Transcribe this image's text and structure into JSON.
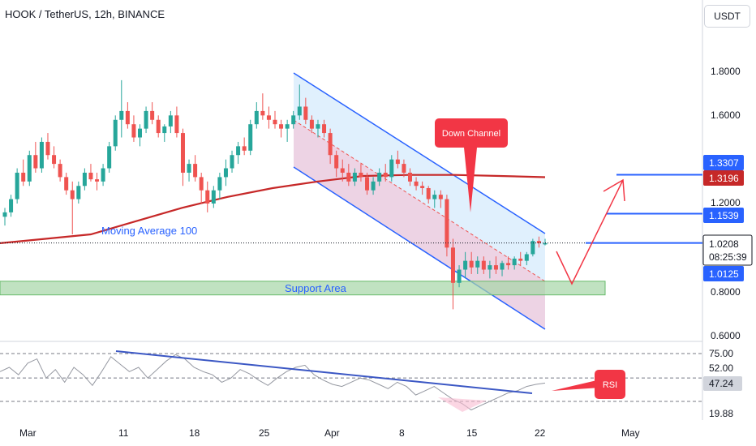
{
  "header": {
    "title": "HOOK / TetherUS, 12h, BINANCE",
    "currency_button": "USDT"
  },
  "colors": {
    "bull": "#26a69a",
    "bear": "#ef5350",
    "ma": "#c62828",
    "channel": "#2962ff",
    "support": "#a5d6a7",
    "rsi": "#9598a1",
    "trend": "#3b57c4",
    "callout": "#f23645"
  },
  "price_axis": {
    "ticks": [
      "1.8000",
      "1.6000",
      "1.2000",
      "0.8000",
      "0.6000"
    ],
    "ylim": [
      0.6,
      1.98
    ]
  },
  "price_labels": {
    "level_1": "1.3307",
    "ma_value": "1.3196",
    "level_2": "1.1539",
    "last_price": "1.0208",
    "countdown": "08:25:39",
    "level_3": "1.0125"
  },
  "rsi_axis": {
    "ticks": [
      "75.00",
      "52.00",
      "19.88"
    ],
    "value": "47.24"
  },
  "x_axis": {
    "labels": [
      "Mar",
      "11",
      "18",
      "25",
      "Apr",
      "8",
      "15",
      "22",
      "May"
    ]
  },
  "annotations": {
    "down_channel": "Down Channel",
    "moving_average": "Moving Average 100",
    "support_area": "Support Area",
    "rsi": "RSI"
  },
  "chart_data": {
    "type": "candlestick",
    "title": "HOOK / TetherUS, 12h, BINANCE",
    "ylim": [
      0.6,
      1.98
    ],
    "series": [
      {
        "name": "",
        "ohlc": [
          [
            1.14,
            1.18,
            1.1,
            1.16
          ],
          [
            1.16,
            1.24,
            1.14,
            1.22
          ],
          [
            1.22,
            1.36,
            1.2,
            1.34
          ],
          [
            1.34,
            1.4,
            1.28,
            1.3
          ],
          [
            1.3,
            1.44,
            1.28,
            1.42
          ],
          [
            1.42,
            1.48,
            1.34,
            1.36
          ],
          [
            1.36,
            1.5,
            1.34,
            1.48
          ],
          [
            1.48,
            1.52,
            1.4,
            1.42
          ],
          [
            1.42,
            1.46,
            1.36,
            1.38
          ],
          [
            1.38,
            1.4,
            1.3,
            1.32
          ],
          [
            1.32,
            1.34,
            1.24,
            1.26
          ],
          [
            1.26,
            1.3,
            1.06,
            1.22
          ],
          [
            1.22,
            1.3,
            1.2,
            1.28
          ],
          [
            1.28,
            1.36,
            1.26,
            1.34
          ],
          [
            1.34,
            1.38,
            1.3,
            1.31
          ],
          [
            1.31,
            1.34,
            1.26,
            1.3
          ],
          [
            1.3,
            1.38,
            1.28,
            1.36
          ],
          [
            1.36,
            1.48,
            1.34,
            1.46
          ],
          [
            1.46,
            1.6,
            1.44,
            1.58
          ],
          [
            1.58,
            1.76,
            1.5,
            1.62
          ],
          [
            1.62,
            1.66,
            1.54,
            1.56
          ],
          [
            1.56,
            1.6,
            1.48,
            1.5
          ],
          [
            1.5,
            1.56,
            1.46,
            1.54
          ],
          [
            1.54,
            1.64,
            1.52,
            1.62
          ],
          [
            1.62,
            1.66,
            1.56,
            1.58
          ],
          [
            1.58,
            1.6,
            1.5,
            1.52
          ],
          [
            1.52,
            1.56,
            1.48,
            1.55
          ],
          [
            1.55,
            1.62,
            1.52,
            1.6
          ],
          [
            1.6,
            1.64,
            1.5,
            1.52
          ],
          [
            1.52,
            1.54,
            1.28,
            1.34
          ],
          [
            1.34,
            1.4,
            1.3,
            1.38
          ],
          [
            1.38,
            1.42,
            1.3,
            1.32
          ],
          [
            1.32,
            1.34,
            1.2,
            1.26
          ],
          [
            1.26,
            1.3,
            1.16,
            1.2
          ],
          [
            1.2,
            1.28,
            1.18,
            1.26
          ],
          [
            1.26,
            1.34,
            1.22,
            1.32
          ],
          [
            1.32,
            1.4,
            1.28,
            1.36
          ],
          [
            1.36,
            1.44,
            1.34,
            1.42
          ],
          [
            1.42,
            1.48,
            1.38,
            1.46
          ],
          [
            1.46,
            1.5,
            1.42,
            1.44
          ],
          [
            1.44,
            1.58,
            1.42,
            1.56
          ],
          [
            1.56,
            1.66,
            1.54,
            1.62
          ],
          [
            1.62,
            1.7,
            1.58,
            1.6
          ],
          [
            1.6,
            1.64,
            1.54,
            1.58
          ],
          [
            1.58,
            1.62,
            1.54,
            1.56
          ],
          [
            1.56,
            1.58,
            1.5,
            1.54
          ],
          [
            1.54,
            1.58,
            1.48,
            1.56
          ],
          [
            1.56,
            1.62,
            1.54,
            1.6
          ],
          [
            1.6,
            1.74,
            1.58,
            1.64
          ],
          [
            1.64,
            1.68,
            1.56,
            1.58
          ],
          [
            1.58,
            1.6,
            1.52,
            1.54
          ],
          [
            1.54,
            1.58,
            1.5,
            1.56
          ],
          [
            1.56,
            1.58,
            1.5,
            1.52
          ],
          [
            1.52,
            1.54,
            1.38,
            1.42
          ],
          [
            1.42,
            1.44,
            1.32,
            1.36
          ],
          [
            1.36,
            1.4,
            1.3,
            1.34
          ],
          [
            1.34,
            1.38,
            1.28,
            1.3
          ],
          [
            1.3,
            1.36,
            1.28,
            1.34
          ],
          [
            1.34,
            1.38,
            1.3,
            1.32
          ],
          [
            1.32,
            1.34,
            1.24,
            1.26
          ],
          [
            1.26,
            1.32,
            1.24,
            1.3
          ],
          [
            1.3,
            1.36,
            1.28,
            1.34
          ],
          [
            1.34,
            1.38,
            1.3,
            1.32
          ],
          [
            1.32,
            1.42,
            1.3,
            1.4
          ],
          [
            1.4,
            1.44,
            1.36,
            1.38
          ],
          [
            1.38,
            1.4,
            1.32,
            1.34
          ],
          [
            1.34,
            1.36,
            1.28,
            1.3
          ],
          [
            1.3,
            1.32,
            1.26,
            1.28
          ],
          [
            1.28,
            1.3,
            1.24,
            1.27
          ],
          [
            1.27,
            1.28,
            1.2,
            1.22
          ],
          [
            1.22,
            1.26,
            1.18,
            1.24
          ],
          [
            1.24,
            1.26,
            1.18,
            1.22
          ],
          [
            1.22,
            1.24,
            0.96,
            1.0
          ],
          [
            1.0,
            1.04,
            0.72,
            0.84
          ],
          [
            0.84,
            0.92,
            0.82,
            0.9
          ],
          [
            0.9,
            0.98,
            0.86,
            0.94
          ],
          [
            0.94,
            0.98,
            0.88,
            0.91
          ],
          [
            0.91,
            0.96,
            0.88,
            0.94
          ],
          [
            0.94,
            0.96,
            0.88,
            0.9
          ],
          [
            0.9,
            0.94,
            0.86,
            0.92
          ],
          [
            0.92,
            0.96,
            0.88,
            0.9
          ],
          [
            0.9,
            0.94,
            0.87,
            0.93
          ],
          [
            0.93,
            0.96,
            0.9,
            0.92
          ],
          [
            0.92,
            0.96,
            0.9,
            0.95
          ],
          [
            0.95,
            0.98,
            0.92,
            0.94
          ],
          [
            0.94,
            0.98,
            0.92,
            0.97
          ],
          [
            0.97,
            1.04,
            0.96,
            1.03
          ],
          [
            1.03,
            1.05,
            1.0,
            1.02
          ],
          [
            1.02,
            1.04,
            1.01,
            1.02
          ]
        ]
      },
      {
        "name": "Moving Average 100",
        "values": [
          1.02,
          1.04,
          1.06,
          1.12,
          1.18,
          1.23,
          1.27,
          1.3,
          1.325,
          1.33,
          1.33,
          1.325,
          1.3196
        ]
      },
      {
        "name": "RSI",
        "ylim": [
          19.88,
          80
        ],
        "values": [
          58,
          62,
          55,
          66,
          70,
          52,
          60,
          48,
          62,
          55,
          45,
          58,
          72,
          65,
          58,
          62,
          52,
          60,
          68,
          74,
          70,
          62,
          58,
          55,
          48,
          52,
          60,
          56,
          50,
          45,
          52,
          58,
          62,
          64,
          55,
          50,
          46,
          44,
          48,
          52,
          50,
          46,
          42,
          48,
          44,
          36,
          40,
          44,
          38,
          32,
          28,
          22,
          26,
          30,
          34,
          38,
          40,
          44,
          46,
          47.24
        ]
      }
    ],
    "levels": [
      1.3307,
      1.1539,
      1.0208,
      1.0125
    ],
    "support_area": [
      0.8,
      0.84
    ]
  }
}
